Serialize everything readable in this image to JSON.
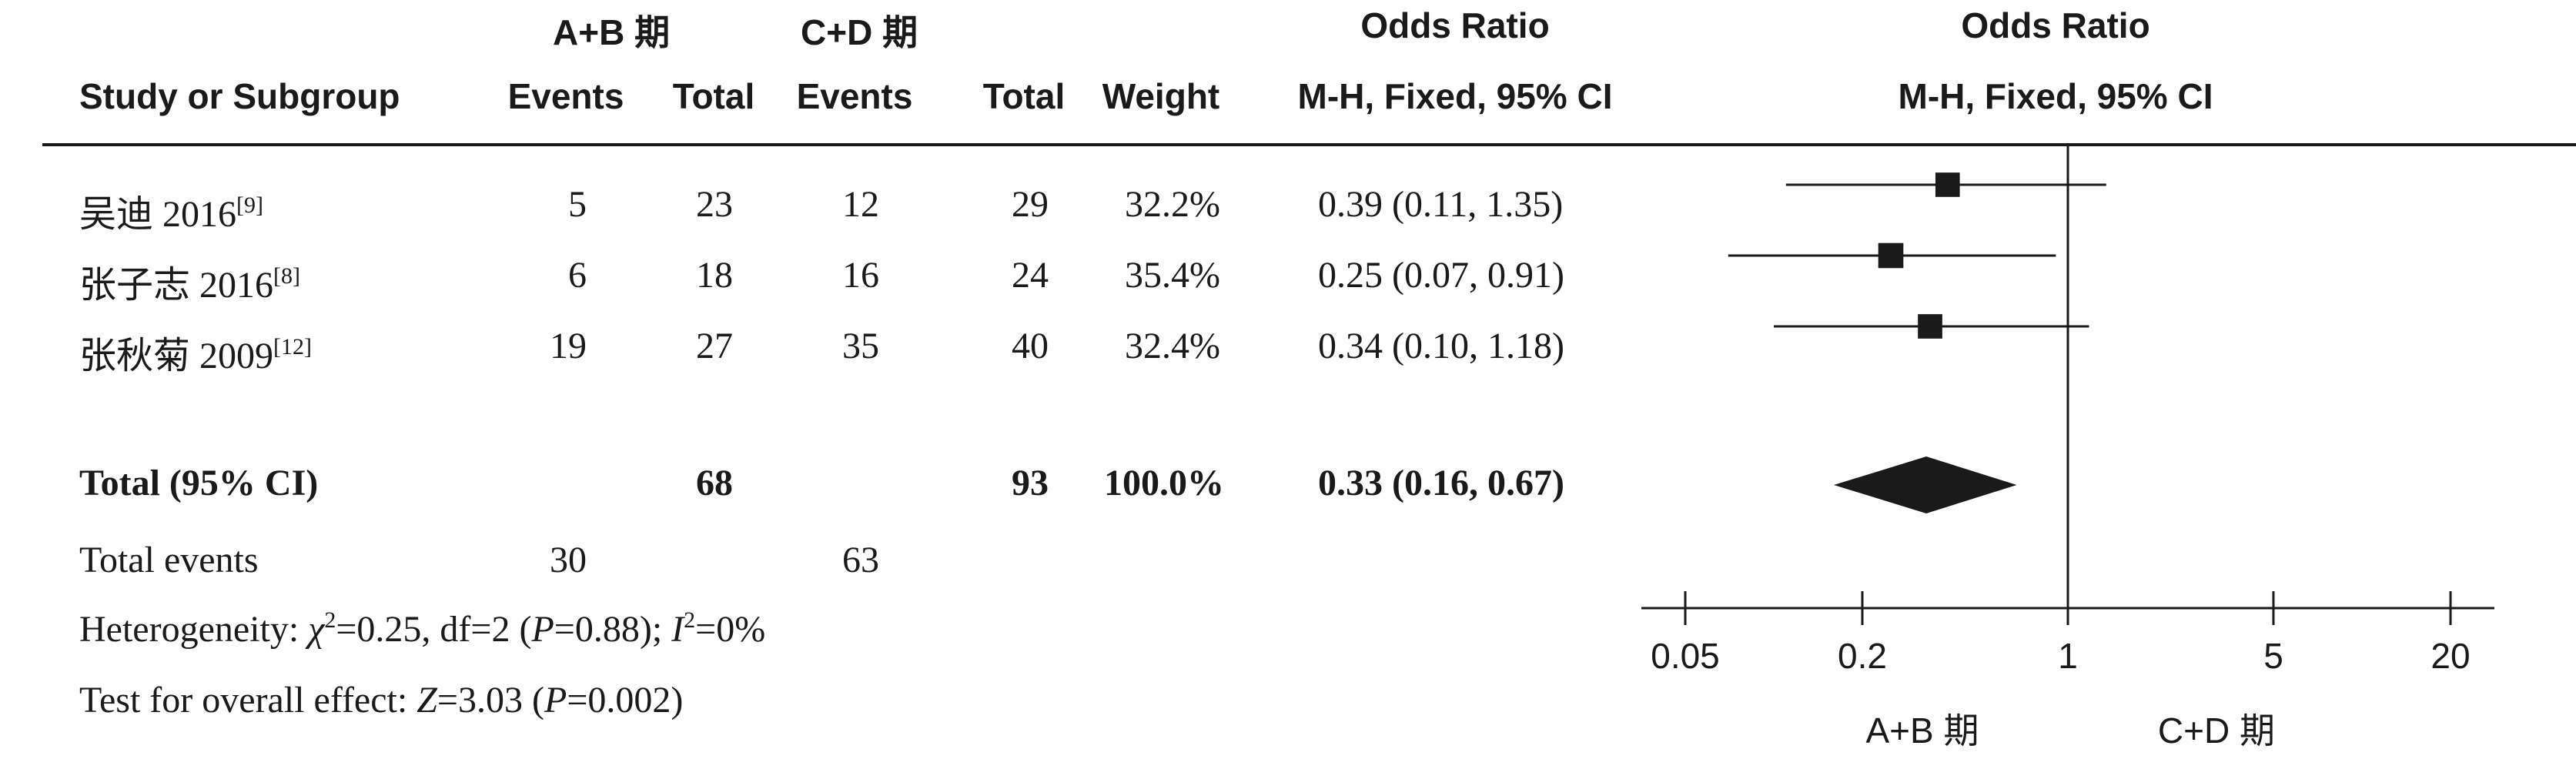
{
  "header": {
    "group1": "A+B 期",
    "group2": "C+D 期",
    "or_title": "Odds Ratio",
    "or_method": "M-H, Fixed, 95% CI",
    "plot_title": "Odds Ratio",
    "plot_method": "M-H, Fixed, 95% CI",
    "col_study": "Study or Subgroup",
    "col_events1": "Events",
    "col_total1": "Total",
    "col_events2": "Events",
    "col_total2": "Total",
    "col_weight": "Weight"
  },
  "rows": [
    {
      "study": "吴迪 2016",
      "ref": "[9]",
      "events1": "5",
      "total1": "23",
      "events2": "12",
      "total2": "29",
      "weight": "32.2%",
      "ci": "0.39 (0.11, 1.35)"
    },
    {
      "study": "张子志 2016",
      "ref": "[8]",
      "events1": "6",
      "total1": "18",
      "events2": "16",
      "total2": "24",
      "weight": "35.4%",
      "ci": "0.25 (0.07, 0.91)"
    },
    {
      "study": "张秋菊 2009",
      "ref": "[12]",
      "events1": "19",
      "total1": "27",
      "events2": "35",
      "total2": "40",
      "weight": "32.4%",
      "ci": "0.34 (0.10, 1.18)"
    }
  ],
  "total": {
    "label": "Total (95% CI)",
    "total1": "68",
    "total2": "93",
    "weight": "100.0%",
    "ci": "0.33 (0.16, 0.67)"
  },
  "events": {
    "label": "Total events",
    "events1": "30",
    "events2": "63"
  },
  "heterogeneity": {
    "prefix": "Heterogeneity: ",
    "chi": "χ",
    "chi_sup": "2",
    "chi_val": "=0.25, df=2 (",
    "p_sym": "P",
    "p_val": "=0.88); ",
    "i_sym": "I",
    "i_sup": "2",
    "i_val": "=0%"
  },
  "overall": {
    "prefix": "Test for overall effect: ",
    "z_sym": "Z",
    "z_val": "=3.03 (",
    "p_sym": "P",
    "p_val": "=0.002)"
  },
  "chart_data": {
    "type": "forest",
    "scale": "log",
    "xlim": [
      0.05,
      20
    ],
    "ticks": [
      0.05,
      0.2,
      1,
      5,
      20
    ],
    "tick_labels": [
      "0.05",
      "0.2",
      "1",
      "5",
      "20"
    ],
    "favours_left": "A+B 期",
    "favours_right": "C+D 期",
    "studies": [
      {
        "label": "吴迪 2016",
        "or": 0.39,
        "lo": 0.11,
        "hi": 1.35,
        "weight": 32.2
      },
      {
        "label": "张子志 2016",
        "or": 0.25,
        "lo": 0.07,
        "hi": 0.91,
        "weight": 35.4
      },
      {
        "label": "张秋菊 2009",
        "or": 0.34,
        "lo": 0.1,
        "hi": 1.18,
        "weight": 32.4
      }
    ],
    "pooled": {
      "or": 0.33,
      "lo": 0.16,
      "hi": 0.67
    }
  }
}
